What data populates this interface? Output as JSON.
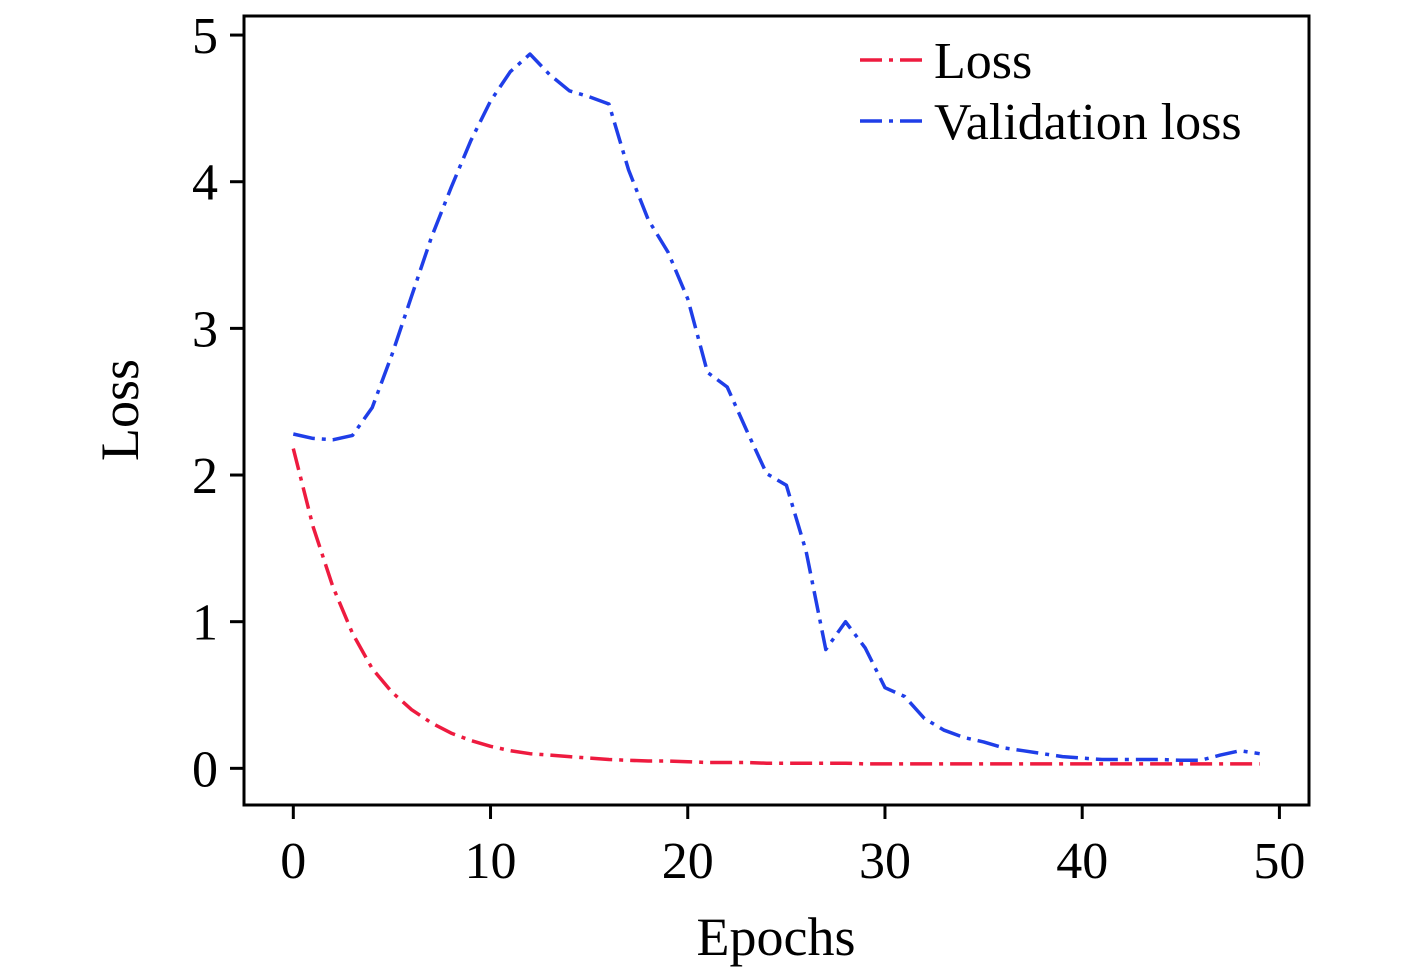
{
  "chart_data": {
    "type": "line",
    "title": "",
    "xlabel": "Epochs",
    "ylabel": "Loss",
    "xlim": [
      -2.5,
      51.5
    ],
    "ylim": [
      -0.25,
      5.13
    ],
    "xticks": [
      0,
      10,
      20,
      30,
      40,
      50
    ],
    "yticks": [
      0,
      1,
      2,
      3,
      4,
      5
    ],
    "xtick_labels": [
      "0",
      "10",
      "20",
      "30",
      "40",
      "50"
    ],
    "ytick_labels": [
      "0",
      "1",
      "2",
      "3",
      "4",
      "5"
    ],
    "grid": false,
    "legend_position": "top-right",
    "series": [
      {
        "name": "Loss",
        "color": "#ee1b3f",
        "linestyle": "dash-dot",
        "x": [
          0,
          1,
          2,
          3,
          4,
          5,
          6,
          7,
          8,
          9,
          10,
          11,
          12,
          13,
          14,
          15,
          16,
          17,
          18,
          19,
          20,
          21,
          22,
          23,
          24,
          25,
          26,
          27,
          28,
          29,
          30,
          31,
          32,
          33,
          34,
          35,
          36,
          37,
          38,
          39,
          40,
          41,
          42,
          43,
          44,
          45,
          46,
          47,
          48,
          49
        ],
        "y": [
          2.18,
          1.65,
          1.24,
          0.92,
          0.68,
          0.52,
          0.4,
          0.31,
          0.24,
          0.19,
          0.15,
          0.12,
          0.1,
          0.09,
          0.08,
          0.07,
          0.06,
          0.055,
          0.05,
          0.05,
          0.045,
          0.04,
          0.04,
          0.04,
          0.035,
          0.035,
          0.035,
          0.035,
          0.035,
          0.03,
          0.03,
          0.03,
          0.03,
          0.03,
          0.03,
          0.03,
          0.03,
          0.03,
          0.03,
          0.03,
          0.03,
          0.03,
          0.03,
          0.03,
          0.03,
          0.03,
          0.03,
          0.03,
          0.03,
          0.03
        ]
      },
      {
        "name": "Validation loss",
        "color": "#1f3ee8",
        "linestyle": "dash-dot",
        "x": [
          0,
          1,
          2,
          3,
          4,
          5,
          6,
          7,
          8,
          9,
          10,
          11,
          12,
          13,
          14,
          15,
          16,
          17,
          18,
          19,
          20,
          21,
          22,
          23,
          24,
          25,
          26,
          27,
          28,
          29,
          30,
          31,
          32,
          33,
          34,
          35,
          36,
          37,
          38,
          39,
          40,
          41,
          42,
          43,
          44,
          45,
          46,
          47,
          48,
          49
        ],
        "y": [
          2.28,
          2.25,
          2.24,
          2.27,
          2.46,
          2.82,
          3.22,
          3.62,
          3.96,
          4.28,
          4.55,
          4.75,
          4.87,
          4.73,
          4.62,
          4.58,
          4.53,
          4.08,
          3.74,
          3.52,
          3.2,
          2.7,
          2.6,
          2.3,
          2.01,
          1.93,
          1.48,
          0.81,
          1.0,
          0.82,
          0.55,
          0.49,
          0.34,
          0.26,
          0.21,
          0.18,
          0.14,
          0.12,
          0.1,
          0.08,
          0.07,
          0.06,
          0.06,
          0.06,
          0.06,
          0.055,
          0.055,
          0.09,
          0.12,
          0.1
        ]
      }
    ]
  }
}
